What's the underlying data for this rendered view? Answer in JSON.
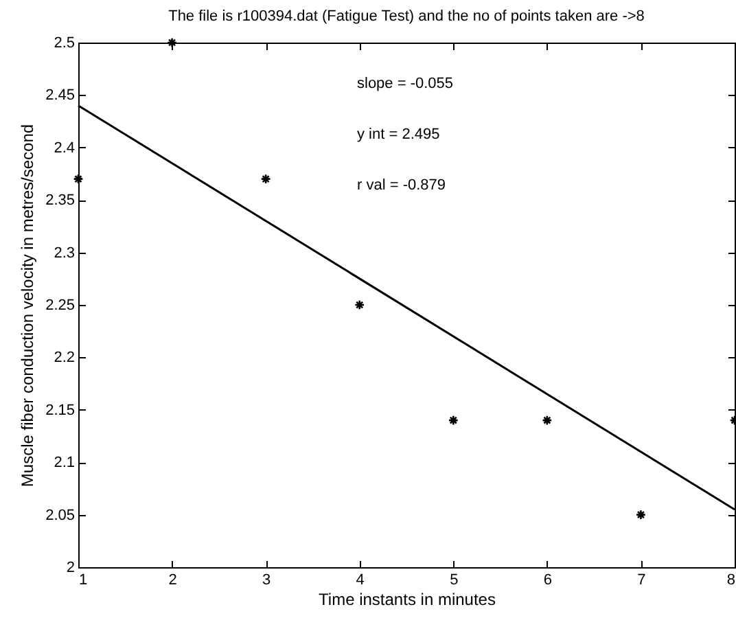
{
  "chart_data": {
    "type": "scatter",
    "title": "The file is r100394.dat (Fatigue Test) and the no of points taken are ->8",
    "xlabel": "Time instants in minutes",
    "ylabel": "Muscle fiber conduction velocity in metres/second",
    "x": [
      1,
      2,
      3,
      4,
      5,
      6,
      7,
      8
    ],
    "series": [
      {
        "color": "#000000",
        "marker": "cross",
        "values": [
          2.37,
          2.5,
          2.37,
          2.25,
          2.14,
          2.14,
          2.05,
          2.14
        ]
      },
      {
        "type": "line",
        "color": "#000000",
        "x": [
          1,
          8
        ],
        "values": [
          2.44,
          2.055
        ]
      }
    ],
    "annotations": [
      "slope = -0.055",
      "y int = 2.495",
      "r val = -0.879"
    ],
    "xlim": [
      1,
      8
    ],
    "xticks": [
      1,
      2,
      3,
      4,
      5,
      6,
      7,
      8
    ],
    "ylim": [
      2,
      2.5
    ],
    "yticks": [
      2,
      2.05,
      2.1,
      2.15,
      2.2,
      2.25,
      2.3,
      2.35,
      2.4,
      2.45,
      2.5
    ],
    "grid": false,
    "line_style": "solid"
  }
}
